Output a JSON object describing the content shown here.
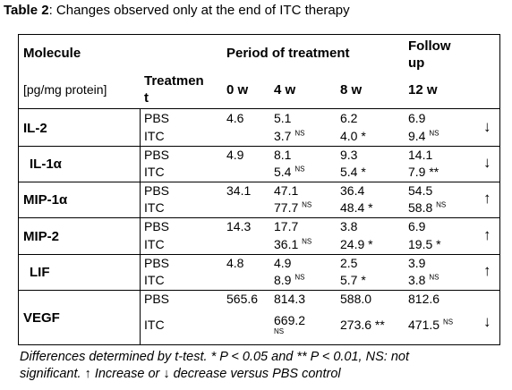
{
  "table": {
    "title_bold": "Table 2",
    "title_rest": ": Changes observed only at the end of ITC therapy",
    "header": {
      "molecule": "Molecule",
      "period": "Period of treatment",
      "followup_1": "Follow",
      "followup_2": "up",
      "unit": "[pg/mg protein]",
      "treatment_1": "Treatmen",
      "treatment_2": "t",
      "w0": "0 w",
      "w4": "4 w",
      "w8": "8 w",
      "w12": "12 w"
    },
    "rows": [
      {
        "molecule": "IL-2",
        "pbs": {
          "label": "PBS",
          "w0": "4.6",
          "w4": "5.1",
          "w8": "6.2",
          "w12": "6.9"
        },
        "itc": {
          "label": "ITC",
          "w4": "3.7",
          "w4_sig": "NS",
          "w8": "4.0 *",
          "w12": "9.4",
          "w12_sig": "NS"
        },
        "arrow": "↓"
      },
      {
        "molecule": "IL-1α",
        "pbs": {
          "label": "PBS",
          "w0": "4.9",
          "w4": "8.1",
          "w8": "9.3",
          "w12": "14.1"
        },
        "itc": {
          "label": "ITC",
          "w4": "5.4",
          "w4_sig": "NS",
          "w8": "5.4 *",
          "w12": "7.9 **"
        },
        "arrow": "↓"
      },
      {
        "molecule": "MIP-1α",
        "pbs": {
          "label": "PBS",
          "w0": "34.1",
          "w4": "47.1",
          "w8": "36.4",
          "w12": "54.5"
        },
        "itc": {
          "label": "ITC",
          "w4": "77.7",
          "w4_sig": "NS",
          "w8": "48.4 *",
          "w12": "58.8",
          "w12_sig": "NS"
        },
        "arrow": "↑"
      },
      {
        "molecule": "MIP-2",
        "pbs": {
          "label": "PBS",
          "w0": "14.3",
          "w4": "17.7",
          "w8": "3.8",
          "w12": "6.9"
        },
        "itc": {
          "label": "ITC",
          "w4": "36.1",
          "w4_sig": "NS",
          "w8": "24.9 *",
          "w12": "19.5 *"
        },
        "arrow": "↑"
      },
      {
        "molecule": "LIF",
        "pbs": {
          "label": "PBS",
          "w0": "4.8",
          "w4": "4.9",
          "w8": "2.5",
          "w12": "3.9"
        },
        "itc": {
          "label": "ITC",
          "w4": "8.9",
          "w4_sig": "NS",
          "w8": "5.7 *",
          "w12": "3.8",
          "w12_sig": "NS"
        },
        "arrow": "↑"
      },
      {
        "molecule": "VEGF",
        "pbs": {
          "label": "PBS",
          "w0": "565.6",
          "w4": "814.3",
          "w8": "588.0",
          "w12": "812.6"
        },
        "itc": {
          "label": "ITC",
          "w4": "669.2",
          "w4_sig": "NS",
          "w8": "273.6 **",
          "w12": "471.5",
          "w12_sig": "NS"
        },
        "arrow": "↓"
      }
    ],
    "footnote_1": "Differences determined by t-test. * P < 0.05 and ** P < 0.01, NS: not",
    "footnote_2": "significant. ↑ Increase or ↓ decrease versus PBS control"
  }
}
